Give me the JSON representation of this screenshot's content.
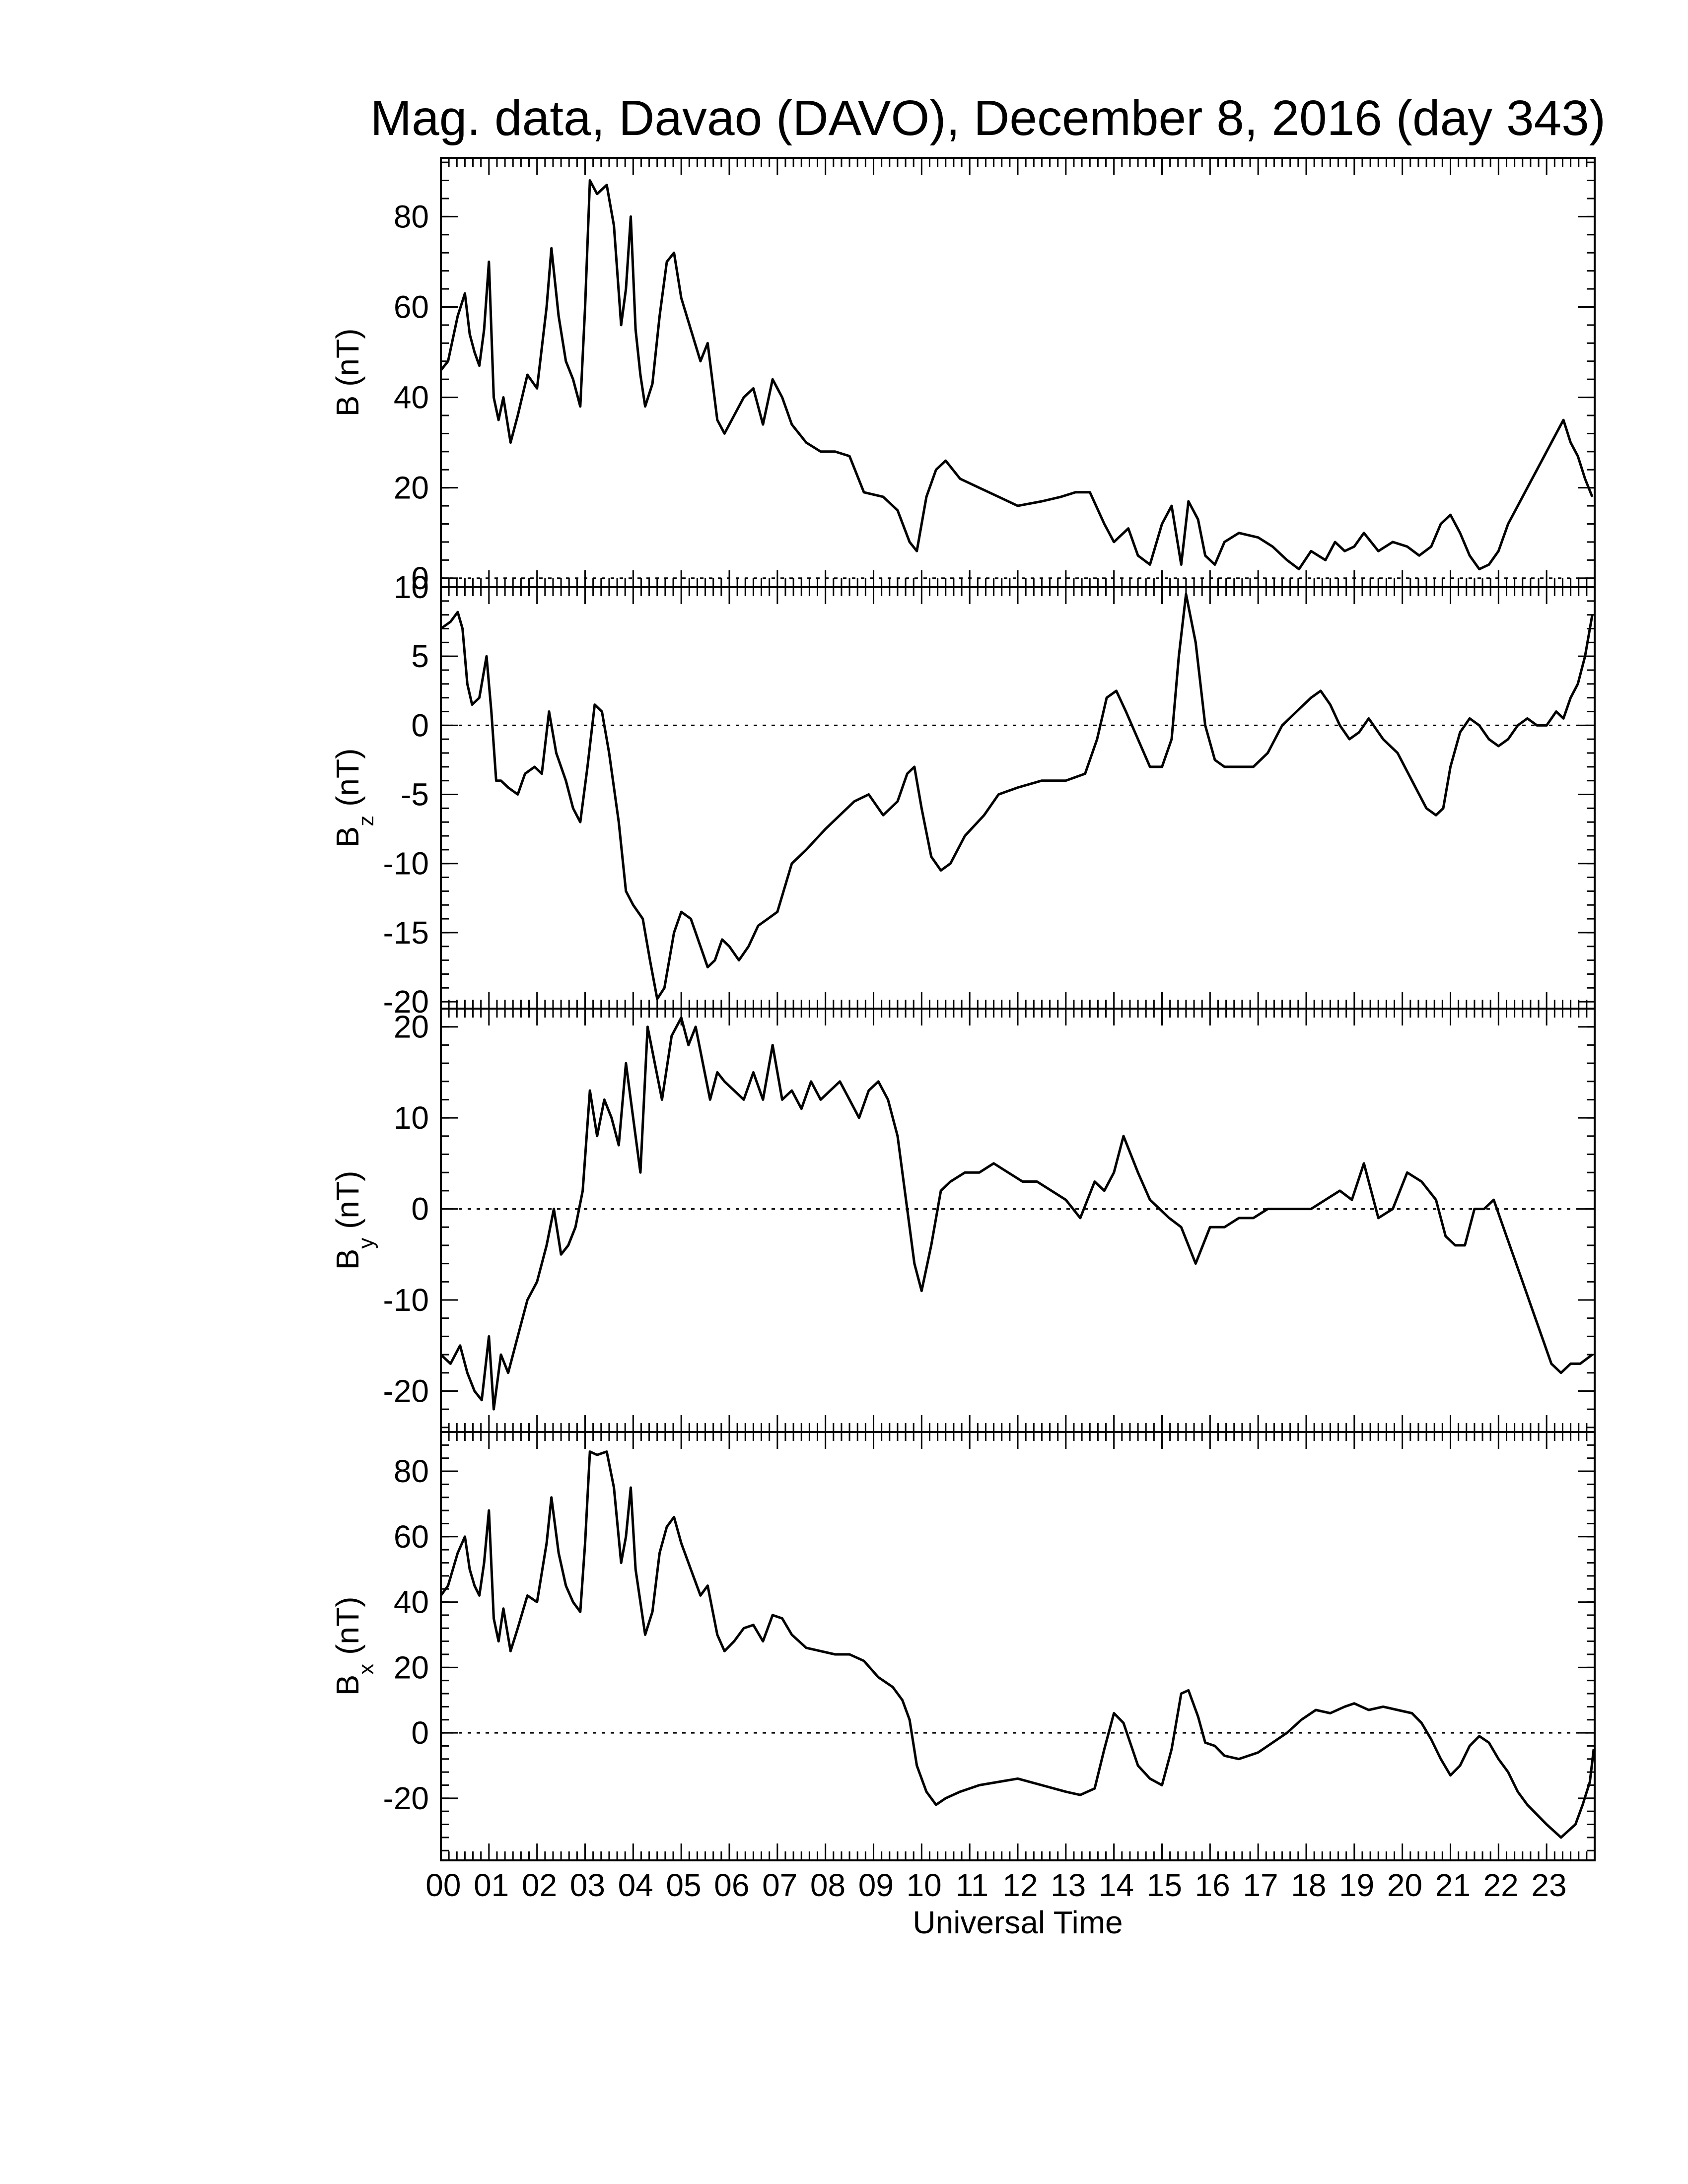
{
  "chart_data": {
    "type": "line",
    "title": "Mag. data, Davao (DAVO), December 8, 2016 (day 343)",
    "xlabel": "Universal Time",
    "xlim": [
      0,
      24
    ],
    "x_tick_labels": [
      "00",
      "01",
      "02",
      "03",
      "04",
      "05",
      "06",
      "07",
      "08",
      "09",
      "10",
      "11",
      "12",
      "13",
      "14",
      "15",
      "16",
      "17",
      "18",
      "19",
      "20",
      "21",
      "22",
      "23"
    ],
    "panels": [
      {
        "id": "B",
        "ylabel": "B (nT)",
        "ylim": [
          -2,
          93
        ],
        "yticks": [
          0,
          20,
          40,
          60,
          80
        ],
        "zero_line": true,
        "series": [
          {
            "x": [
              0,
              0.15,
              0.35,
              0.5,
              0.6,
              0.7,
              0.8,
              0.9,
              1.0,
              1.1,
              1.2,
              1.3,
              1.45,
              1.6,
              1.8,
              2.0,
              2.2,
              2.3,
              2.45,
              2.6,
              2.75,
              2.9,
              3.0,
              3.1,
              3.25,
              3.45,
              3.6,
              3.75,
              3.85,
              3.95,
              4.05,
              4.15,
              4.25,
              4.4,
              4.55,
              4.7,
              4.85,
              5.0,
              5.2,
              5.4,
              5.55,
              5.75,
              5.9,
              6.1,
              6.3,
              6.5,
              6.7,
              6.9,
              7.1,
              7.3,
              7.6,
              7.9,
              8.2,
              8.5,
              8.8,
              9.2,
              9.5,
              9.75,
              9.9,
              10.1,
              10.3,
              10.5,
              10.8,
              11.2,
              11.6,
              12.0,
              12.5,
              12.9,
              13.2,
              13.5,
              13.8,
              14.0,
              14.3,
              14.5,
              14.75,
              15.0,
              15.2,
              15.4,
              15.55,
              15.75,
              15.9,
              16.1,
              16.3,
              16.6,
              17.0,
              17.3,
              17.6,
              17.85,
              18.1,
              18.4,
              18.6,
              18.8,
              19.0,
              19.2,
              19.5,
              19.8,
              20.1,
              20.35,
              20.6,
              20.8,
              21.0,
              21.2,
              21.4,
              21.6,
              21.8,
              22.0,
              22.2,
              22.4,
              22.6,
              22.8,
              23.0,
              23.2,
              23.35,
              23.5,
              23.65,
              23.8,
              23.95
            ],
            "y": [
              46,
              48,
              58,
              63,
              54,
              50,
              47,
              55,
              70,
              40,
              35,
              40,
              30,
              36,
              45,
              42,
              60,
              73,
              58,
              48,
              44,
              38,
              60,
              88,
              85,
              87,
              78,
              56,
              64,
              80,
              55,
              45,
              38,
              43,
              58,
              70,
              72,
              62,
              55,
              48,
              52,
              35,
              32,
              36,
              40,
              42,
              34,
              44,
              40,
              34,
              30,
              28,
              28,
              27,
              19,
              18,
              15,
              8,
              6,
              18,
              24,
              26,
              22,
              20,
              18,
              16,
              17,
              18,
              19,
              19,
              12,
              8,
              11,
              5,
              3,
              12,
              16,
              3,
              17,
              13,
              5,
              3,
              8,
              10,
              9,
              7,
              4,
              2,
              6,
              4,
              8,
              6,
              7,
              10,
              6,
              8,
              7,
              5,
              7,
              12,
              14,
              10,
              5,
              2,
              3,
              6,
              12,
              16,
              20,
              24,
              28,
              32,
              35,
              30,
              27,
              22,
              18
            ]
          }
        ]
      },
      {
        "id": "Bz",
        "ylabel": "B",
        "ylabel_sub": "z",
        "ylabel_unit": " (nT)",
        "ylim": [
          -20.5,
          10
        ],
        "yticks": [
          -20,
          -15,
          -10,
          -5,
          0,
          5,
          10
        ],
        "zero_line": true,
        "series": [
          {
            "x": [
              0,
              0.2,
              0.35,
              0.45,
              0.55,
              0.65,
              0.8,
              0.95,
              1.05,
              1.15,
              1.25,
              1.4,
              1.6,
              1.75,
              1.95,
              2.1,
              2.25,
              2.4,
              2.6,
              2.75,
              2.9,
              3.05,
              3.2,
              3.35,
              3.5,
              3.7,
              3.85,
              4.0,
              4.2,
              4.35,
              4.5,
              4.65,
              4.85,
              5.0,
              5.2,
              5.4,
              5.55,
              5.7,
              5.85,
              6.0,
              6.2,
              6.4,
              6.6,
              6.8,
              7.0,
              7.3,
              7.6,
              8.0,
              8.3,
              8.6,
              8.9,
              9.2,
              9.5,
              9.7,
              9.85,
              10.0,
              10.2,
              10.4,
              10.6,
              10.9,
              11.3,
              11.6,
              12.0,
              12.5,
              13.0,
              13.4,
              13.65,
              13.85,
              14.05,
              14.25,
              14.5,
              14.75,
              15.0,
              15.2,
              15.35,
              15.5,
              15.7,
              15.9,
              16.1,
              16.3,
              16.6,
              16.9,
              17.2,
              17.5,
              17.8,
              18.1,
              18.3,
              18.5,
              18.7,
              18.9,
              19.1,
              19.3,
              19.6,
              19.9,
              20.2,
              20.5,
              20.7,
              20.85,
              21.0,
              21.2,
              21.4,
              21.6,
              21.8,
              22.0,
              22.2,
              22.4,
              22.6,
              22.8,
              23.0,
              23.2,
              23.35,
              23.5,
              23.65,
              23.8,
              23.95
            ],
            "y": [
              7,
              7.5,
              8.2,
              7,
              3,
              1.5,
              2,
              5,
              1,
              -4,
              -4,
              -4.5,
              -5,
              -3.5,
              -3,
              -3.5,
              1,
              -2,
              -4,
              -6,
              -7,
              -3,
              1.5,
              1,
              -2,
              -7,
              -12,
              -13,
              -14,
              -17,
              -19.8,
              -19,
              -15,
              -13.5,
              -14,
              -16,
              -17.5,
              -17,
              -15.5,
              -16,
              -17,
              -16,
              -14.5,
              -14,
              -13.5,
              -10,
              -9,
              -7.5,
              -6.5,
              -5.5,
              -5,
              -6.5,
              -5.5,
              -3.5,
              -3,
              -6,
              -9.5,
              -10.5,
              -10,
              -8,
              -6.5,
              -5,
              -4.5,
              -4,
              -4,
              -3.5,
              -1,
              2,
              2.5,
              1,
              -1,
              -3,
              -3,
              -1,
              5,
              9.5,
              6,
              0,
              -2.5,
              -3,
              -3,
              -3,
              -2,
              0,
              1,
              2,
              2.5,
              1.5,
              0,
              -1,
              -0.5,
              0.5,
              -1,
              -2,
              -4,
              -6,
              -6.5,
              -6,
              -3,
              -0.5,
              0.5,
              0,
              -1,
              -1.5,
              -1,
              0,
              0.5,
              0,
              0,
              1,
              0.5,
              2,
              3,
              5,
              8
            ]
          }
        ]
      },
      {
        "id": "By",
        "ylabel": "B",
        "ylabel_sub": "y",
        "ylabel_unit": " (nT)",
        "ylim": [
          -24.5,
          22
        ],
        "yticks": [
          -20,
          -10,
          0,
          10,
          20
        ],
        "zero_line": true,
        "series": [
          {
            "x": [
              0,
              0.2,
              0.4,
              0.55,
              0.7,
              0.85,
              1.0,
              1.1,
              1.25,
              1.4,
              1.6,
              1.8,
              2.0,
              2.2,
              2.35,
              2.5,
              2.65,
              2.8,
              2.95,
              3.1,
              3.25,
              3.4,
              3.55,
              3.7,
              3.85,
              4.0,
              4.15,
              4.3,
              4.45,
              4.6,
              4.8,
              5.0,
              5.15,
              5.3,
              5.45,
              5.6,
              5.75,
              5.9,
              6.1,
              6.3,
              6.5,
              6.7,
              6.9,
              7.1,
              7.3,
              7.5,
              7.7,
              7.9,
              8.1,
              8.3,
              8.5,
              8.7,
              8.9,
              9.1,
              9.3,
              9.5,
              9.7,
              9.85,
              10.0,
              10.2,
              10.4,
              10.6,
              10.9,
              11.2,
              11.5,
              11.8,
              12.1,
              12.4,
              12.7,
              13.0,
              13.3,
              13.6,
              13.8,
              14.0,
              14.2,
              14.5,
              14.75,
              14.95,
              15.15,
              15.4,
              15.7,
              16.0,
              16.3,
              16.6,
              16.9,
              17.2,
              17.5,
              17.8,
              18.1,
              18.4,
              18.7,
              18.95,
              19.2,
              19.5,
              19.8,
              20.1,
              20.4,
              20.7,
              20.9,
              21.1,
              21.3,
              21.5,
              21.7,
              21.9,
              22.1,
              22.3,
              22.5,
              22.7,
              22.9,
              23.1,
              23.3,
              23.5,
              23.7,
              23.95
            ],
            "y": [
              -16,
              -17,
              -15,
              -18,
              -20,
              -21,
              -14,
              -22,
              -16,
              -18,
              -14,
              -10,
              -8,
              -4,
              0,
              -5,
              -4,
              -2,
              2,
              13,
              8,
              12,
              10,
              7,
              16,
              10,
              4,
              20,
              16,
              12,
              19,
              21,
              18,
              20,
              16,
              12,
              15,
              14,
              13,
              12,
              15,
              12,
              18,
              12,
              13,
              11,
              14,
              12,
              13,
              14,
              12,
              10,
              13,
              14,
              12,
              8,
              0,
              -6,
              -9,
              -4,
              2,
              3,
              4,
              4,
              5,
              4,
              3,
              3,
              2,
              1,
              -1,
              3,
              2,
              4,
              8,
              4,
              1,
              0,
              -1,
              -2,
              -6,
              -2,
              -2,
              -1,
              -1,
              0,
              0,
              0,
              0,
              1,
              2,
              1,
              5,
              -1,
              0,
              4,
              3,
              1,
              -3,
              -4,
              -4,
              0,
              0,
              1,
              -2,
              -5,
              -8,
              -11,
              -14,
              -17,
              -18,
              -17,
              -17,
              -16
            ]
          }
        ]
      },
      {
        "id": "Bx",
        "ylabel": "B",
        "ylabel_sub": "x",
        "ylabel_unit": " (nT)",
        "ylim": [
          -39,
          92
        ],
        "yticks": [
          -20,
          0,
          20,
          40,
          60,
          80
        ],
        "zero_line": true,
        "series": [
          {
            "x": [
              0,
              0.15,
              0.35,
              0.5,
              0.6,
              0.7,
              0.8,
              0.9,
              1.0,
              1.1,
              1.2,
              1.3,
              1.45,
              1.6,
              1.8,
              2.0,
              2.2,
              2.3,
              2.45,
              2.6,
              2.75,
              2.9,
              3.0,
              3.1,
              3.25,
              3.45,
              3.6,
              3.75,
              3.85,
              3.95,
              4.05,
              4.15,
              4.25,
              4.4,
              4.55,
              4.7,
              4.85,
              5.0,
              5.2,
              5.4,
              5.55,
              5.75,
              5.9,
              6.1,
              6.3,
              6.5,
              6.7,
              6.9,
              7.1,
              7.3,
              7.6,
              7.9,
              8.2,
              8.5,
              8.8,
              9.1,
              9.4,
              9.6,
              9.75,
              9.9,
              10.1,
              10.3,
              10.5,
              10.8,
              11.2,
              11.6,
              12.0,
              12.5,
              13.0,
              13.3,
              13.6,
              13.8,
              14.0,
              14.2,
              14.5,
              14.75,
              15.0,
              15.2,
              15.4,
              15.55,
              15.75,
              15.9,
              16.1,
              16.3,
              16.6,
              17.0,
              17.3,
              17.6,
              17.9,
              18.2,
              18.5,
              18.8,
              19.0,
              19.3,
              19.6,
              19.9,
              20.2,
              20.4,
              20.6,
              20.8,
              21.0,
              21.2,
              21.4,
              21.6,
              21.8,
              22.0,
              22.2,
              22.4,
              22.6,
              22.8,
              23.0,
              23.15,
              23.3,
              23.45,
              23.6,
              23.75,
              23.9,
              23.98
            ],
            "y": [
              42,
              45,
              55,
              60,
              50,
              45,
              42,
              52,
              68,
              35,
              28,
              38,
              25,
              32,
              42,
              40,
              58,
              72,
              55,
              45,
              40,
              37,
              58,
              86,
              85,
              86,
              75,
              52,
              60,
              75,
              50,
              40,
              30,
              37,
              55,
              63,
              66,
              58,
              50,
              42,
              45,
              30,
              25,
              28,
              32,
              33,
              28,
              36,
              35,
              30,
              26,
              25,
              24,
              24,
              22,
              17,
              14,
              10,
              4,
              -10,
              -18,
              -22,
              -20,
              -18,
              -16,
              -15,
              -14,
              -16,
              -18,
              -19,
              -17,
              -5,
              6,
              3,
              -10,
              -14,
              -16,
              -5,
              12,
              13,
              5,
              -3,
              -4,
              -7,
              -8,
              -6,
              -3,
              0,
              4,
              7,
              6,
              8,
              9,
              7,
              8,
              7,
              6,
              3,
              -2,
              -8,
              -13,
              -10,
              -4,
              -1,
              -3,
              -8,
              -12,
              -18,
              -22,
              -25,
              -28,
              -30,
              -32,
              -30,
              -28,
              -22,
              -15,
              -5
            ]
          }
        ]
      }
    ]
  }
}
